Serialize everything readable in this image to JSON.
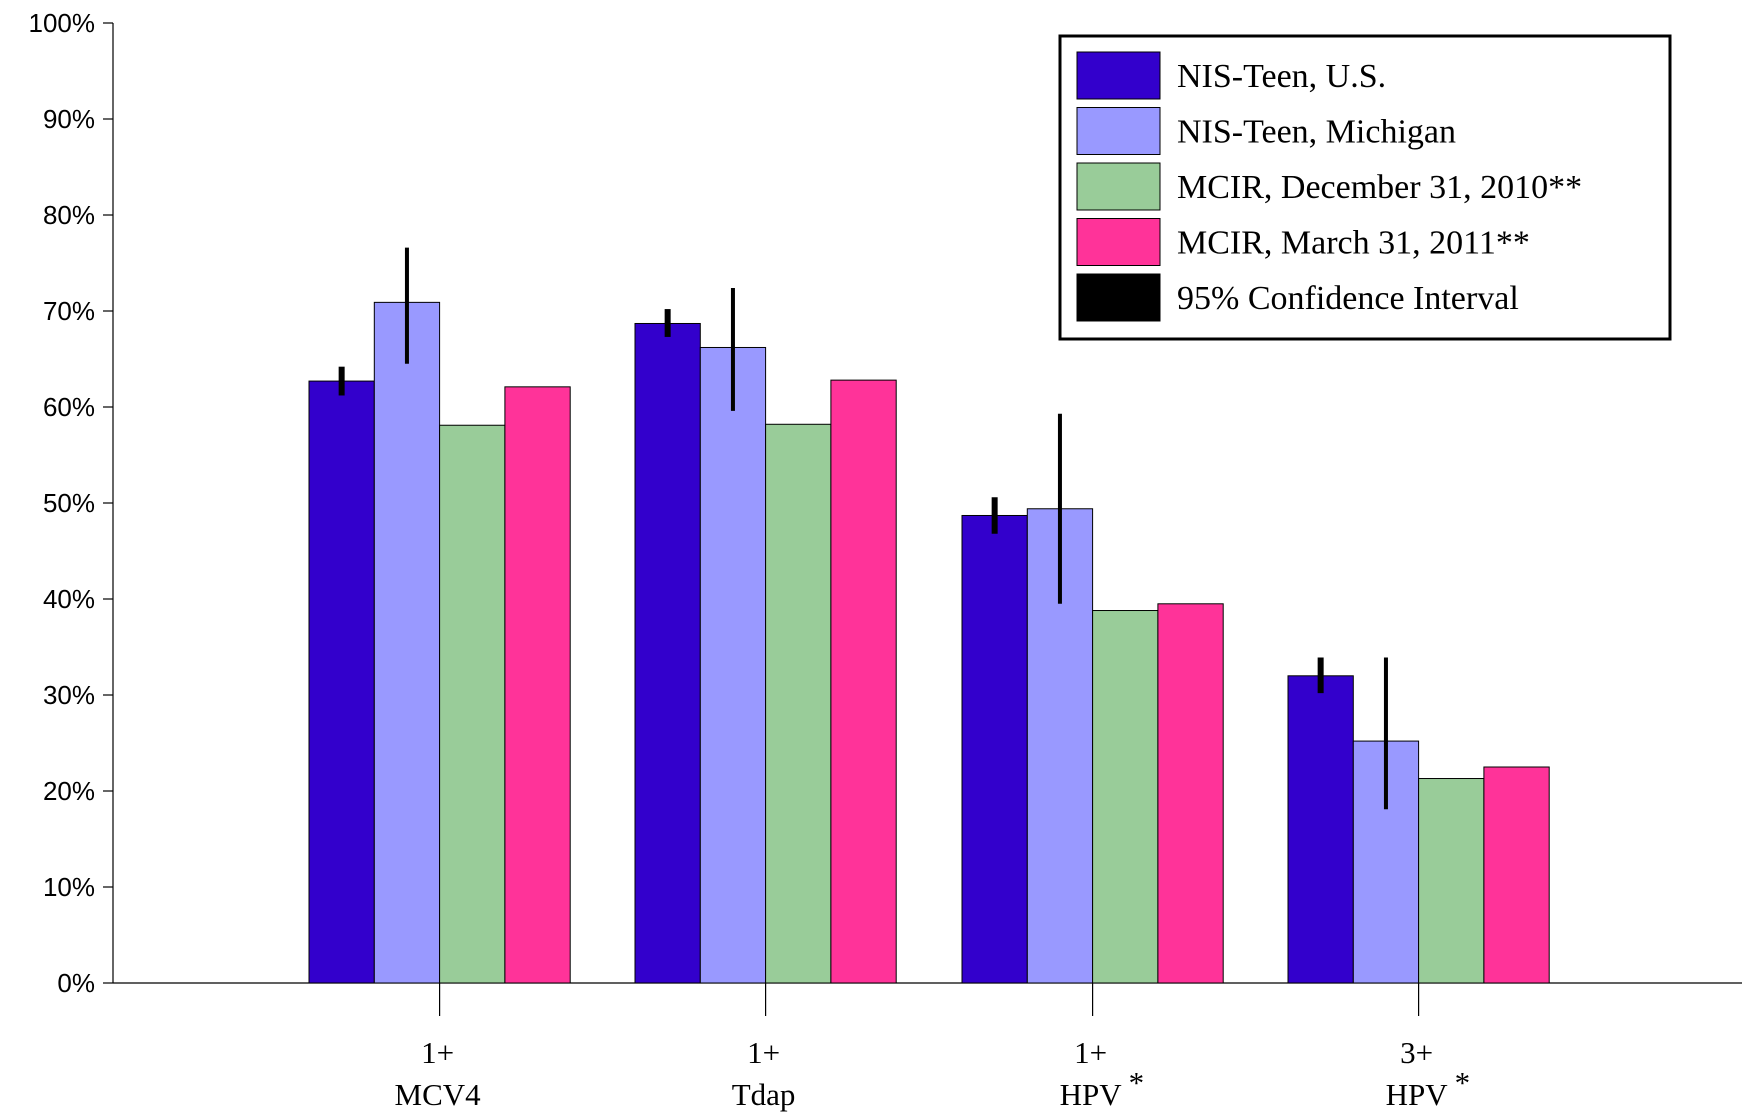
{
  "chart_data": {
    "type": "bar",
    "categories": [
      {
        "line1": "1+",
        "line2": "MCV4",
        "star": ""
      },
      {
        "line1": "1+",
        "line2": "Tdap",
        "star": ""
      },
      {
        "line1": "1+",
        "line2": "HPV",
        "star": "*"
      },
      {
        "line1": "3+",
        "line2": "HPV",
        "star": "*"
      }
    ],
    "series": [
      {
        "name": "NIS-Teen, U.S.",
        "color": "#3300cc",
        "values": [
          62.7,
          68.7,
          48.7,
          32.0
        ],
        "ci": [
          [
            61.2,
            64.2
          ],
          [
            67.3,
            70.2
          ],
          [
            46.8,
            50.6
          ],
          [
            30.2,
            33.9
          ]
        ]
      },
      {
        "name": "NIS-Teen, Michigan",
        "color": "#9999ff",
        "values": [
          70.9,
          66.2,
          49.4,
          25.2
        ],
        "ci": [
          [
            64.5,
            76.6
          ],
          [
            59.6,
            72.4
          ],
          [
            39.5,
            59.3
          ],
          [
            18.1,
            33.9
          ]
        ]
      },
      {
        "name": "MCIR, December 31, 2010**",
        "color": "#99cc99",
        "values": [
          58.1,
          58.2,
          38.8,
          21.3
        ],
        "ci": null
      },
      {
        "name": "MCIR, March 31, 2011**",
        "color": "#ff3399",
        "values": [
          62.1,
          62.8,
          39.5,
          22.5
        ],
        "ci": null
      }
    ],
    "legend": {
      "entries": [
        {
          "label": "NIS-Teen, U.S.",
          "color": "#3300cc"
        },
        {
          "label": "NIS-Teen, Michigan",
          "color": "#9999ff"
        },
        {
          "label": "MCIR, December 31, 2010**",
          "color": "#99cc99"
        },
        {
          "label": "MCIR, March 31, 2011**",
          "color": "#ff3399"
        },
        {
          "label": "95% Confidence Interval",
          "color": "#000000"
        }
      ],
      "placement": "top-right"
    },
    "ylim": [
      0,
      100
    ],
    "yticks": [
      "0%",
      "10%",
      "20%",
      "30%",
      "40%",
      "50%",
      "60%",
      "70%",
      "80%",
      "90%",
      "100%"
    ],
    "grid": false,
    "title": "",
    "xlabel": "",
    "ylabel": ""
  }
}
